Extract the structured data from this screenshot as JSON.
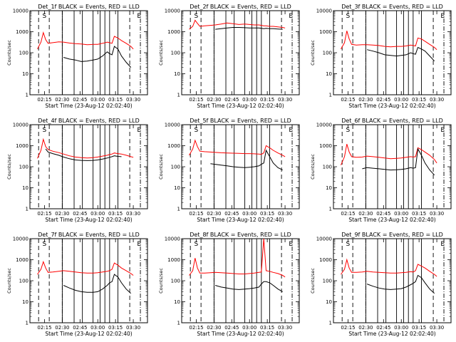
{
  "colors": {
    "events": "#000000",
    "lld": "#ff0000",
    "background": "#ffffff"
  },
  "chart_data": [
    {
      "type": "line",
      "title": "Det_1f BLACK = Events, RED = LLD",
      "xlabel": "Start Time (23-Aug-12 02:02:40)",
      "ylabel": "Counts/sec",
      "yscale": "log",
      "ylim": [
        1,
        10000
      ],
      "xlim": [
        "02:02:40",
        "03:42:00"
      ],
      "x_ticks": [
        "02:15",
        "02:30",
        "02:45",
        "03:00",
        "03:15",
        "03:30"
      ],
      "y_ticks": [
        "1",
        "10",
        "100",
        "1000",
        "10000"
      ],
      "markers": [
        "S",
        "E"
      ],
      "x": [
        "02:09",
        "02:12",
        "02:14",
        "02:16",
        "02:18",
        "02:22",
        "02:27",
        "02:31",
        "02:36",
        "02:41",
        "02:46",
        "02:51",
        "02:56",
        "03:00",
        "03:04",
        "03:08",
        "03:10",
        "03:12",
        "03:14",
        "03:17",
        "03:20",
        "03:24",
        "03:28",
        "03:30"
      ],
      "series": [
        {
          "values": [
            150,
            320,
            900,
            420,
            280,
            300,
            330,
            320,
            290,
            270,
            260,
            240,
            250,
            250,
            280,
            320,
            300,
            280,
            600,
            500,
            380,
            280,
            200,
            150
          ]
        },
        {
          "values": [
            null,
            null,
            null,
            null,
            null,
            null,
            null,
            60,
            50,
            45,
            38,
            40,
            45,
            50,
            70,
            110,
            90,
            80,
            200,
            150,
            70,
            35,
            20,
            null
          ]
        }
      ]
    },
    {
      "type": "line",
      "title": "Det_2f BLACK = Events, RED = LLD",
      "xlabel": "Start Time (23-Aug-12 02:02:40)",
      "ylabel": "Counts/sec",
      "yscale": "log",
      "ylim": [
        1,
        10000
      ],
      "xlim": [
        "02:02:40",
        "03:42:00"
      ],
      "x_ticks": [
        "02:15",
        "02:30",
        "02:45",
        "03:00",
        "03:15",
        "03:30"
      ],
      "y_ticks": [
        "1",
        "10",
        "100",
        "1000",
        "10000"
      ],
      "markers": [
        "S",
        "E"
      ],
      "x": [
        "02:09",
        "02:12",
        "02:14",
        "02:16",
        "02:18",
        "02:22",
        "02:27",
        "02:31",
        "02:36",
        "02:41",
        "02:46",
        "02:51",
        "02:56",
        "03:00",
        "03:04",
        "03:08",
        "03:10",
        "03:12",
        "03:14",
        "03:17",
        "03:20",
        "03:24",
        "03:28",
        "03:30"
      ],
      "series": [
        {
          "values": [
            1300,
            1800,
            3500,
            2500,
            1800,
            1900,
            2000,
            2100,
            2300,
            2600,
            2400,
            2200,
            2300,
            2200,
            2100,
            2100,
            2000,
            1900,
            1900,
            1800,
            1800,
            1700,
            1600,
            1500
          ]
        },
        {
          "values": [
            null,
            null,
            null,
            null,
            null,
            null,
            null,
            1300,
            1400,
            1500,
            1600,
            1600,
            1550,
            1500,
            1500,
            1500,
            1450,
            1400,
            1450,
            1400,
            1400,
            1350,
            1300,
            null
          ]
        }
      ]
    },
    {
      "type": "line",
      "title": "Det_3f BLACK = Events, RED = LLD",
      "xlabel": "Start Time (23-Aug-12 02:02:40)",
      "ylabel": "Counts/sec",
      "yscale": "log",
      "ylim": [
        1,
        10000
      ],
      "xlim": [
        "02:02:40",
        "03:42:00"
      ],
      "x_ticks": [
        "02:15",
        "02:30",
        "02:45",
        "03:00",
        "03:15",
        "03:30"
      ],
      "y_ticks": [
        "1",
        "10",
        "100",
        "1000",
        "10000"
      ],
      "markers": [
        "S",
        "E"
      ],
      "x": [
        "02:09",
        "02:12",
        "02:14",
        "02:16",
        "02:18",
        "02:22",
        "02:27",
        "02:31",
        "02:36",
        "02:41",
        "02:46",
        "02:51",
        "02:56",
        "03:00",
        "03:04",
        "03:08",
        "03:10",
        "03:12",
        "03:14",
        "03:17",
        "03:20",
        "03:24",
        "03:28",
        "03:30"
      ],
      "series": [
        {
          "values": [
            150,
            300,
            1100,
            450,
            250,
            230,
            240,
            240,
            230,
            220,
            200,
            190,
            200,
            200,
            210,
            230,
            220,
            210,
            500,
            450,
            350,
            250,
            180,
            140
          ]
        },
        {
          "values": [
            null,
            null,
            null,
            null,
            null,
            null,
            null,
            140,
            120,
            100,
            80,
            75,
            70,
            75,
            80,
            100,
            90,
            85,
            180,
            150,
            120,
            70,
            40,
            null
          ]
        }
      ]
    },
    {
      "type": "line",
      "title": "Det_4f BLACK = Events, RED = LLD",
      "xlabel": "Start Time (23-Aug-12 02:02:40)",
      "ylabel": "Counts/sec",
      "yscale": "log",
      "ylim": [
        1,
        10000
      ],
      "xlim": [
        "02:02:40",
        "03:42:00"
      ],
      "x_ticks": [
        "02:15",
        "02:30",
        "02:45",
        "03:00",
        "03:15",
        "03:30"
      ],
      "y_ticks": [
        "1",
        "10",
        "100",
        "1000",
        "10000"
      ],
      "markers": [
        "S",
        "E"
      ],
      "x": [
        "02:09",
        "02:12",
        "02:14",
        "02:16",
        "02:18",
        "02:22",
        "02:27",
        "02:31",
        "02:36",
        "02:41",
        "02:46",
        "02:51",
        "02:56",
        "03:00",
        "03:04",
        "03:08",
        "03:10",
        "03:12",
        "03:14",
        "03:17",
        "03:20",
        "03:24",
        "03:28",
        "03:30"
      ],
      "series": [
        {
          "values": [
            250,
            600,
            2000,
            900,
            650,
            550,
            470,
            400,
            330,
            290,
            270,
            260,
            270,
            290,
            320,
            350,
            380,
            400,
            450,
            420,
            400,
            350,
            300,
            280
          ]
        },
        {
          "values": [
            null,
            null,
            null,
            700,
            500,
            420,
            350,
            290,
            240,
            210,
            200,
            195,
            200,
            210,
            230,
            260,
            280,
            300,
            330,
            310,
            300,
            null,
            null,
            null
          ]
        }
      ]
    },
    {
      "type": "line",
      "title": "Det_5f BLACK = Events, RED = LLD",
      "xlabel": "Start Time (23-Aug-12 02:02:40)",
      "ylabel": "Counts/sec",
      "yscale": "log",
      "ylim": [
        1,
        10000
      ],
      "xlim": [
        "02:02:40",
        "03:42:00"
      ],
      "x_ticks": [
        "02:15",
        "02:30",
        "02:45",
        "03:00",
        "03:15",
        "03:30"
      ],
      "y_ticks": [
        "1",
        "10",
        "100",
        "1000",
        "10000"
      ],
      "markers": [
        "S",
        "E"
      ],
      "x": [
        "02:09",
        "02:12",
        "02:14",
        "02:16",
        "02:18",
        "02:22",
        "02:27",
        "02:31",
        "02:36",
        "02:41",
        "02:46",
        "02:51",
        "02:56",
        "03:00",
        "03:04",
        "03:08",
        "03:10",
        "03:12",
        "03:14",
        "03:17",
        "03:20",
        "03:24",
        "03:28",
        "03:30"
      ],
      "series": [
        {
          "values": [
            350,
            700,
            1800,
            900,
            550,
            520,
            500,
            480,
            460,
            450,
            440,
            430,
            420,
            420,
            410,
            400,
            390,
            450,
            1000,
            800,
            600,
            450,
            350,
            300
          ]
        },
        {
          "values": [
            null,
            null,
            null,
            null,
            null,
            null,
            140,
            130,
            120,
            110,
            100,
            95,
            90,
            95,
            100,
            110,
            130,
            150,
            600,
            300,
            150,
            90,
            70,
            null
          ]
        }
      ]
    },
    {
      "type": "line",
      "title": "Det_6f BLACK = Events, RED = LLD",
      "xlabel": "Start Time (23-Aug-12 02:02:40)",
      "ylabel": "Counts/sec",
      "yscale": "log",
      "ylim": [
        1,
        10000
      ],
      "xlim": [
        "02:02:40",
        "03:42:00"
      ],
      "x_ticks": [
        "02:15",
        "02:30",
        "02:45",
        "03:00",
        "03:15",
        "03:30"
      ],
      "y_ticks": [
        "1",
        "10",
        "100",
        "1000",
        "10000"
      ],
      "markers": [
        "S",
        "E"
      ],
      "x": [
        "02:09",
        "02:12",
        "02:14",
        "02:16",
        "02:18",
        "02:22",
        "02:27",
        "02:31",
        "02:36",
        "02:41",
        "02:46",
        "02:51",
        "02:56",
        "03:00",
        "03:04",
        "03:08",
        "03:10",
        "03:12",
        "03:14",
        "03:17",
        "03:20",
        "03:24",
        "03:28",
        "03:30"
      ],
      "series": [
        {
          "values": [
            120,
            300,
            1200,
            500,
            300,
            280,
            290,
            320,
            300,
            280,
            260,
            240,
            250,
            260,
            280,
            300,
            290,
            300,
            800,
            650,
            500,
            350,
            220,
            150
          ]
        },
        {
          "values": [
            null,
            null,
            null,
            null,
            null,
            null,
            80,
            90,
            85,
            80,
            75,
            70,
            72,
            75,
            80,
            90,
            85,
            90,
            700,
            350,
            150,
            70,
            40,
            null
          ]
        }
      ]
    },
    {
      "type": "line",
      "title": "Det_7f BLACK = Events, RED = LLD",
      "xlabel": "Start Time (23-Aug-12 02:02:40)",
      "ylabel": "Counts/sec",
      "yscale": "log",
      "ylim": [
        1,
        10000
      ],
      "xlim": [
        "02:02:40",
        "03:42:00"
      ],
      "x_ticks": [
        "02:15",
        "02:30",
        "02:45",
        "03:00",
        "03:15",
        "03:30"
      ],
      "y_ticks": [
        "1",
        "10",
        "100",
        "1000",
        "10000"
      ],
      "markers": [
        "S",
        "E"
      ],
      "x": [
        "02:09",
        "02:12",
        "02:14",
        "02:16",
        "02:18",
        "02:22",
        "02:27",
        "02:31",
        "02:36",
        "02:41",
        "02:46",
        "02:51",
        "02:56",
        "03:00",
        "03:04",
        "03:08",
        "03:10",
        "03:12",
        "03:14",
        "03:17",
        "03:20",
        "03:24",
        "03:28",
        "03:30"
      ],
      "series": [
        {
          "values": [
            200,
            350,
            800,
            400,
            250,
            260,
            280,
            300,
            280,
            260,
            240,
            230,
            230,
            240,
            260,
            280,
            300,
            350,
            700,
            550,
            400,
            300,
            220,
            180
          ]
        },
        {
          "values": [
            null,
            null,
            null,
            null,
            null,
            null,
            null,
            60,
            45,
            35,
            30,
            28,
            28,
            30,
            40,
            60,
            80,
            90,
            200,
            150,
            80,
            40,
            25,
            null
          ]
        }
      ]
    },
    {
      "type": "line",
      "title": "Det_8f BLACK = Events, RED = LLD",
      "xlabel": "Start Time (23-Aug-12 02:02:40)",
      "ylabel": "Counts/sec",
      "yscale": "log",
      "ylim": [
        1,
        10000
      ],
      "xlim": [
        "02:02:40",
        "03:42:00"
      ],
      "x_ticks": [
        "02:15",
        "02:30",
        "02:45",
        "03:00",
        "03:15",
        "03:30"
      ],
      "y_ticks": [
        "1",
        "10",
        "100",
        "1000",
        "10000"
      ],
      "markers": [
        "S",
        "E"
      ],
      "x": [
        "02:09",
        "02:12",
        "02:14",
        "02:16",
        "02:18",
        "02:22",
        "02:27",
        "02:31",
        "02:36",
        "02:41",
        "02:46",
        "02:51",
        "02:56",
        "03:00",
        "03:04",
        "03:08",
        "03:10",
        "03:12",
        "03:14",
        "03:17",
        "03:20",
        "03:24",
        "03:28",
        "03:30"
      ],
      "series": [
        {
          "values": [
            180,
            300,
            1200,
            400,
            230,
            230,
            240,
            250,
            240,
            230,
            220,
            210,
            210,
            220,
            230,
            250,
            260,
            10000,
            300,
            280,
            250,
            220,
            180,
            150
          ]
        },
        {
          "values": [
            null,
            null,
            null,
            null,
            null,
            null,
            null,
            60,
            50,
            45,
            40,
            38,
            40,
            42,
            45,
            50,
            70,
            90,
            90,
            80,
            60,
            40,
            30,
            null
          ]
        }
      ]
    },
    {
      "type": "line",
      "title": "Det_9f BLACK = Events, RED = LLD",
      "xlabel": "Start Time (23-Aug-12 02:02:40)",
      "ylabel": "Counts/sec",
      "yscale": "log",
      "ylim": [
        1,
        10000
      ],
      "xlim": [
        "02:02:40",
        "03:42:00"
      ],
      "x_ticks": [
        "02:15",
        "02:30",
        "02:45",
        "03:00",
        "03:15",
        "03:30"
      ],
      "y_ticks": [
        "1",
        "10",
        "100",
        "1000",
        "10000"
      ],
      "markers": [
        "S",
        "E"
      ],
      "x": [
        "02:09",
        "02:12",
        "02:14",
        "02:16",
        "02:18",
        "02:22",
        "02:27",
        "02:31",
        "02:36",
        "02:41",
        "02:46",
        "02:51",
        "02:56",
        "03:00",
        "03:04",
        "03:08",
        "03:10",
        "03:12",
        "03:14",
        "03:17",
        "03:20",
        "03:24",
        "03:28",
        "03:30"
      ],
      "series": [
        {
          "values": [
            200,
            350,
            1000,
            400,
            250,
            250,
            260,
            280,
            260,
            250,
            240,
            230,
            230,
            240,
            250,
            270,
            260,
            300,
            600,
            500,
            400,
            280,
            200,
            160
          ]
        },
        {
          "values": [
            null,
            null,
            null,
            null,
            null,
            null,
            null,
            70,
            55,
            45,
            40,
            38,
            40,
            42,
            50,
            65,
            75,
            90,
            180,
            140,
            80,
            40,
            25,
            null
          ]
        }
      ]
    }
  ]
}
